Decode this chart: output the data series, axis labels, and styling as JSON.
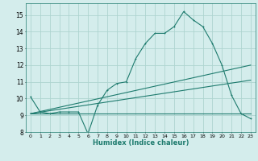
{
  "title": "",
  "xlabel": "Humidex (Indice chaleur)",
  "ylabel": "",
  "background_color": "#d4edec",
  "grid_color": "#aed4d0",
  "line_color": "#1e7b6e",
  "xlim": [
    -0.5,
    23.5
  ],
  "ylim": [
    8.0,
    15.7
  ],
  "yticks": [
    8,
    9,
    10,
    11,
    12,
    13,
    14,
    15
  ],
  "xticks": [
    0,
    1,
    2,
    3,
    4,
    5,
    6,
    7,
    8,
    9,
    10,
    11,
    12,
    13,
    14,
    15,
    16,
    17,
    18,
    19,
    20,
    21,
    22,
    23
  ],
  "series1_x": [
    0,
    1,
    2,
    3,
    4,
    5,
    6,
    7,
    8,
    9,
    10,
    11,
    12,
    13,
    14,
    15,
    16,
    17,
    18,
    19,
    20,
    21,
    22,
    23
  ],
  "series1_y": [
    10.1,
    9.2,
    9.1,
    9.2,
    9.2,
    9.2,
    7.9,
    9.6,
    10.5,
    10.9,
    11.0,
    12.4,
    13.3,
    13.9,
    13.9,
    14.3,
    15.2,
    14.7,
    14.3,
    13.3,
    12.0,
    10.2,
    9.1,
    8.8
  ],
  "series2_x": [
    0,
    23
  ],
  "series2_y": [
    9.1,
    9.1
  ],
  "series3_x": [
    0,
    23
  ],
  "series3_y": [
    9.1,
    11.1
  ],
  "series4_x": [
    0,
    23
  ],
  "series4_y": [
    9.1,
    12.0
  ]
}
